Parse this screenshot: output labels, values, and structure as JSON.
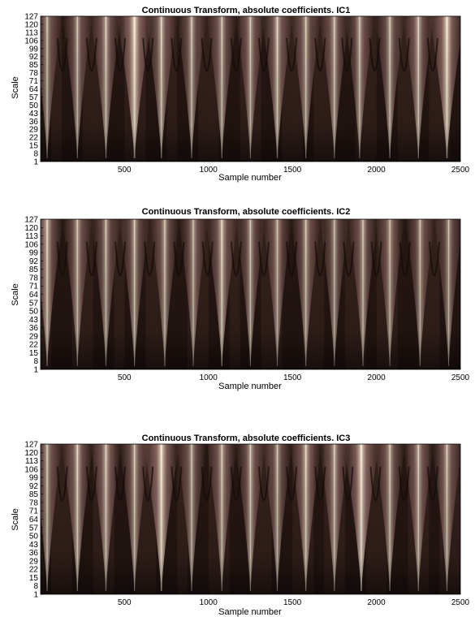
{
  "chart_data": [
    {
      "type": "heatmap",
      "title": "Continuous Transform, absolute coefficients. IC1",
      "xlabel": "Sample number",
      "ylabel": "Scale",
      "xlim": [
        1,
        2500
      ],
      "ylim": [
        1,
        127
      ],
      "x_ticks": [
        500,
        1000,
        1500,
        2000,
        2500
      ],
      "y_ticks": [
        1,
        8,
        15,
        22,
        29,
        36,
        43,
        50,
        57,
        64,
        71,
        78,
        85,
        92,
        99,
        106,
        113,
        120,
        127
      ],
      "colormap": "pink",
      "ridge_samples": [
        40,
        220,
        390,
        560,
        720,
        900,
        1080,
        1250,
        1410,
        1580,
        1750,
        1900,
        2080,
        2250,
        2420
      ],
      "ridge_strength": [
        0.55,
        0.55,
        0.65,
        1.0,
        0.7,
        0.6,
        0.6,
        0.55,
        0.7,
        0.6,
        0.6,
        0.55,
        0.6,
        0.65,
        0.95
      ]
    },
    {
      "type": "heatmap",
      "title": "Continuous Transform, absolute coefficients. IC2",
      "xlabel": "Sample number",
      "ylabel": "Scale",
      "xlim": [
        1,
        2500
      ],
      "ylim": [
        1,
        127
      ],
      "x_ticks": [
        500,
        1000,
        1500,
        2000,
        2500
      ],
      "y_ticks": [
        1,
        8,
        15,
        22,
        29,
        36,
        43,
        50,
        57,
        64,
        71,
        78,
        85,
        92,
        99,
        106,
        113,
        120,
        127
      ],
      "colormap": "pink",
      "ridge_samples": [
        40,
        220,
        390,
        560,
        740,
        910,
        1080,
        1250,
        1410,
        1580,
        1750,
        1920,
        2080,
        2260,
        2430
      ],
      "ridge_strength": [
        0.7,
        0.55,
        0.55,
        0.6,
        0.55,
        0.5,
        0.75,
        0.55,
        0.5,
        0.55,
        0.5,
        0.55,
        0.5,
        0.5,
        0.5
      ]
    },
    {
      "type": "heatmap",
      "title": "Continuous Transform, absolute coefficients. IC3",
      "xlabel": "Sample number",
      "ylabel": "Scale",
      "xlim": [
        1,
        2500
      ],
      "ylim": [
        1,
        127
      ],
      "x_ticks": [
        500,
        1000,
        1500,
        2000,
        2500
      ],
      "y_ticks": [
        1,
        8,
        15,
        22,
        29,
        36,
        43,
        50,
        57,
        64,
        71,
        78,
        85,
        92,
        99,
        106,
        113,
        120,
        127
      ],
      "colormap": "pink",
      "ridge_samples": [
        40,
        220,
        390,
        560,
        720,
        900,
        1080,
        1250,
        1410,
        1580,
        1750,
        1910,
        2080,
        2250,
        2420
      ],
      "ridge_strength": [
        0.6,
        0.7,
        0.65,
        0.6,
        1.0,
        0.55,
        0.6,
        0.6,
        0.55,
        0.7,
        0.6,
        1.0,
        0.6,
        0.6,
        0.6
      ]
    }
  ]
}
